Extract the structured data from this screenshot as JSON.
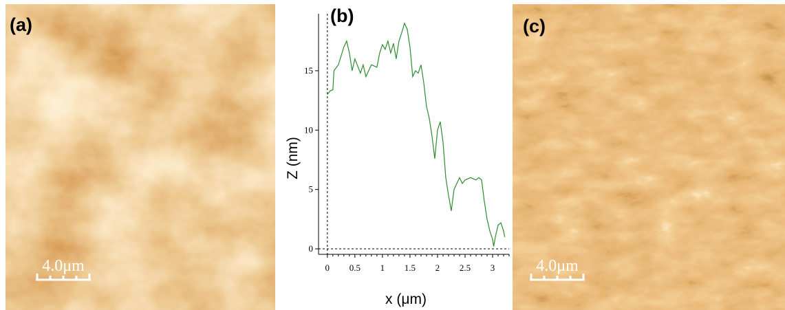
{
  "image_panels": [
    {
      "label": "(a)",
      "scale_bar": "4.0μm"
    },
    {
      "label": "(c)",
      "scale_bar": "4.0μm"
    }
  ],
  "chart_data": {
    "type": "line",
    "label": "(b)",
    "xlabel": "x (μm)",
    "ylabel": "Z (nm)",
    "color": "#2e8b2e",
    "x": [
      0,
      0.05,
      0.1,
      0.12,
      0.2,
      0.3,
      0.35,
      0.4,
      0.45,
      0.5,
      0.6,
      0.65,
      0.7,
      0.8,
      0.9,
      0.95,
      1.0,
      1.05,
      1.1,
      1.15,
      1.2,
      1.25,
      1.3,
      1.35,
      1.4,
      1.45,
      1.5,
      1.55,
      1.6,
      1.65,
      1.7,
      1.75,
      1.8,
      1.85,
      1.9,
      1.95,
      2.0,
      2.05,
      2.1,
      2.15,
      2.2,
      2.25,
      2.3,
      2.35,
      2.4,
      2.45,
      2.5,
      2.6,
      2.7,
      2.75,
      2.8,
      2.85,
      2.9,
      2.95,
      3.0,
      3.02,
      3.05,
      3.1,
      3.15,
      3.2,
      3.22
    ],
    "values": [
      13,
      13.3,
      13.4,
      15,
      15.5,
      17,
      17.5,
      16.5,
      15,
      16,
      14.8,
      15.5,
      14.5,
      15.5,
      15.3,
      16.5,
      17.2,
      16.8,
      17.5,
      16.5,
      17.3,
      16,
      17.5,
      18.2,
      19,
      18.5,
      17,
      14.5,
      15,
      14.8,
      15.5,
      14,
      12,
      11,
      9.5,
      7.6,
      10,
      10.7,
      9,
      6,
      4.5,
      3.2,
      5,
      5.5,
      6,
      5.5,
      5.8,
      6,
      5.8,
      6,
      5.8,
      4,
      2.5,
      1.5,
      0.8,
      0.2,
      1,
      2,
      2.2,
      1.5,
      1
    ],
    "xlim": [
      -0.16,
      3.3
    ],
    "ylim": [
      -0.46,
      19.8
    ],
    "xticks": [
      0,
      0.5,
      1,
      1.5,
      2,
      2.5,
      3
    ],
    "yticks": [
      0,
      5,
      10,
      15
    ]
  }
}
